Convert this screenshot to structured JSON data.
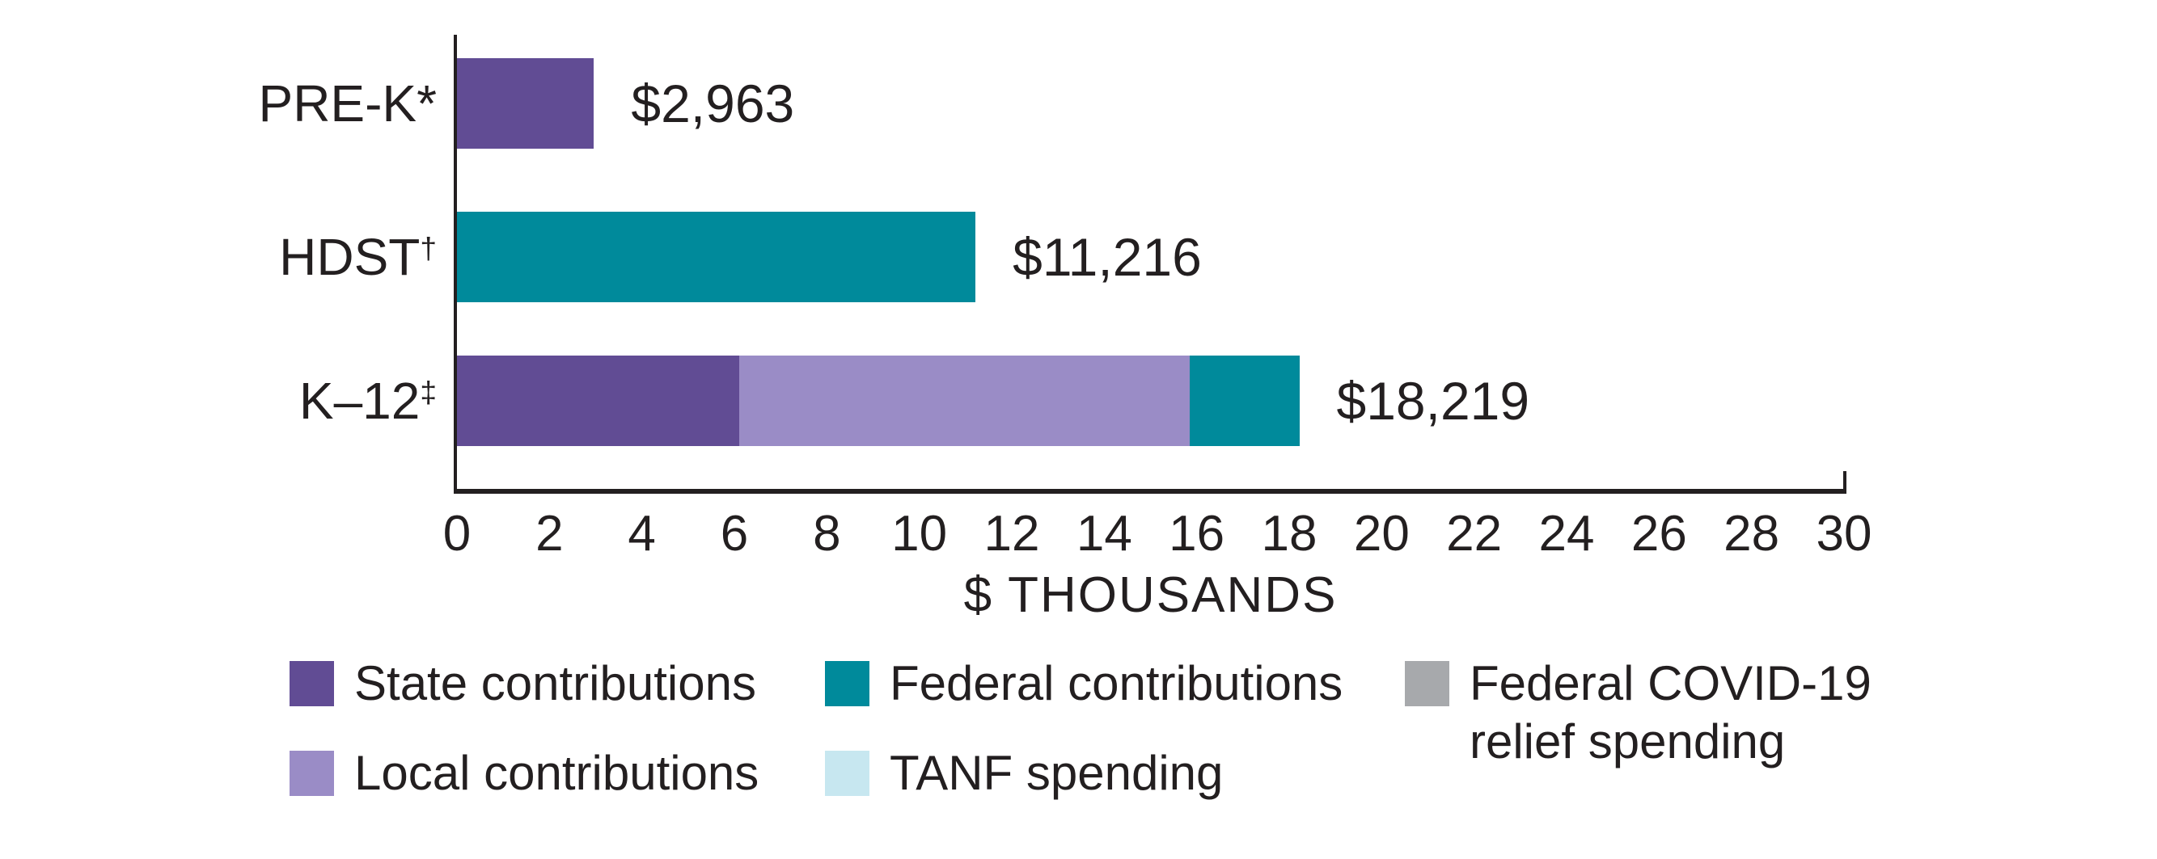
{
  "chart_data": {
    "type": "bar",
    "orientation": "horizontal",
    "title": "",
    "xlabel": "$ THOUSANDS",
    "xlim": [
      0,
      30
    ],
    "x_ticks": [
      0,
      2,
      4,
      6,
      8,
      10,
      12,
      14,
      16,
      18,
      20,
      22,
      24,
      26,
      28,
      30
    ],
    "grid": false,
    "units": "thousands of dollars per child",
    "rows": [
      {
        "label": "PRE-K",
        "marker": "*",
        "marker_superscript": false,
        "value_label": "$2,963",
        "total": 2.963,
        "segments": [
          {
            "series": "state",
            "value": 2.963
          }
        ]
      },
      {
        "label": "HDST",
        "marker": "†",
        "marker_superscript": true,
        "value_label": "$11,216",
        "total": 11.216,
        "segments": [
          {
            "series": "federal",
            "value": 11.216
          }
        ]
      },
      {
        "label": "K–12",
        "marker": "‡",
        "marker_superscript": true,
        "value_label": "$18,219",
        "total": 18.219,
        "segments": [
          {
            "series": "state",
            "value": 6.1
          },
          {
            "series": "local",
            "value": 9.75
          },
          {
            "series": "federal",
            "value": 2.369
          }
        ]
      }
    ],
    "series_colors": {
      "state": "#614C94",
      "local": "#9A8CC6",
      "federal": "#008A9B",
      "tanf": "#C7E7F0",
      "covid": "#A7A9AC"
    },
    "text_color": "#231F20",
    "legend_position": "bottom"
  },
  "legend": {
    "columns": [
      {
        "items": [
          {
            "label": "State contributions",
            "series": "state"
          },
          {
            "label": "Local contributions",
            "series": "local"
          }
        ]
      },
      {
        "items": [
          {
            "label": "Federal contributions",
            "series": "federal"
          },
          {
            "label": "TANF spending",
            "series": "tanf"
          }
        ]
      },
      {
        "items": [
          {
            "label": "Federal COVID-19\nrelief spending",
            "series": "covid"
          }
        ]
      }
    ]
  }
}
